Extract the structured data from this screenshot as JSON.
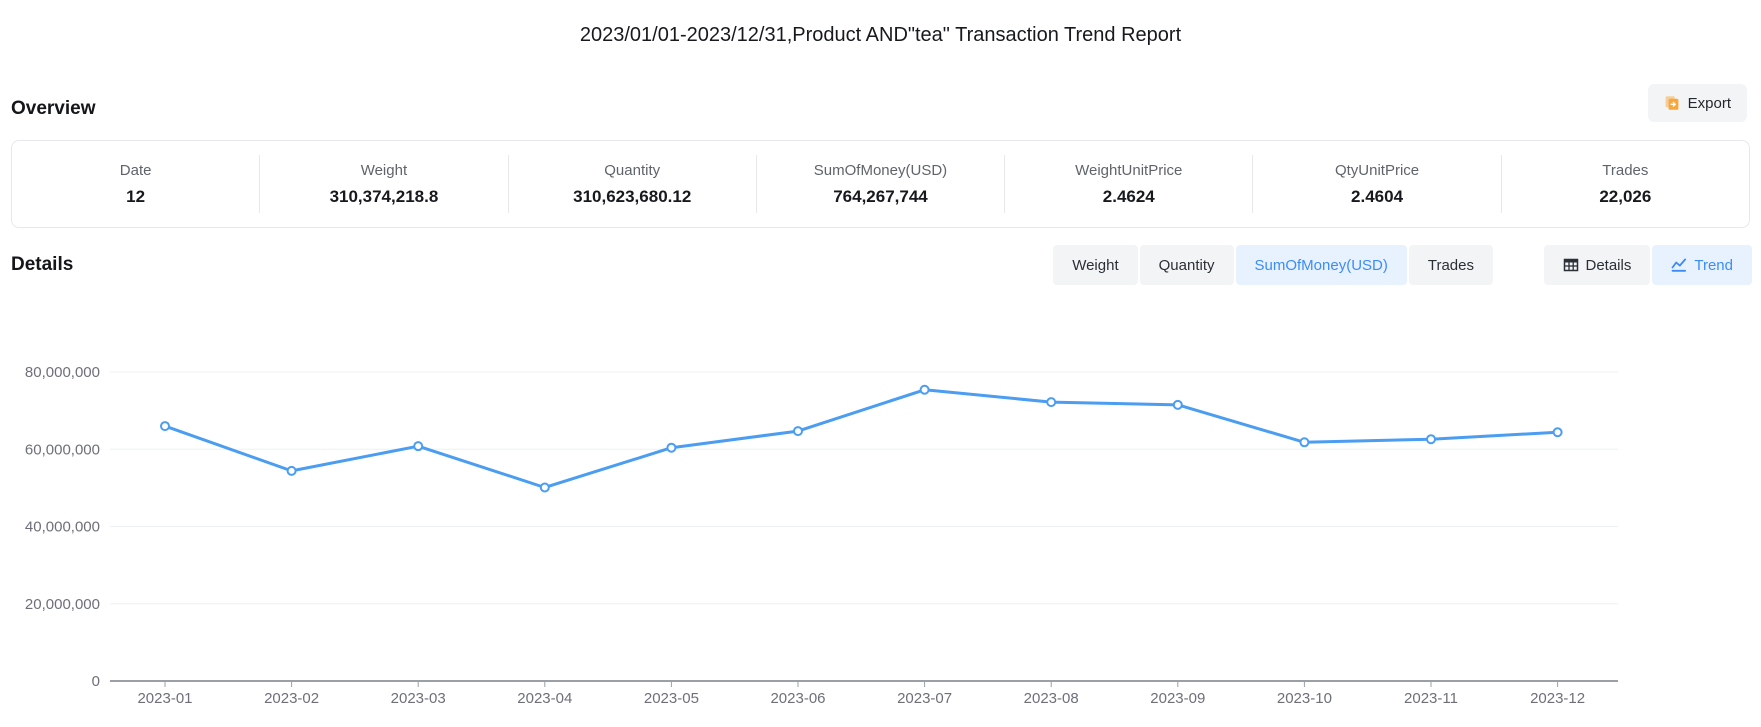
{
  "report": {
    "title": "2023/01/01-2023/12/31,Product AND\"tea\" Transaction Trend Report"
  },
  "overview": {
    "heading": "Overview",
    "export_label": "Export",
    "export_icon": "export-document-icon",
    "stats": [
      {
        "label": "Date",
        "value": "12"
      },
      {
        "label": "Weight",
        "value": "310,374,218.8"
      },
      {
        "label": "Quantity",
        "value": "310,623,680.12"
      },
      {
        "label": "SumOfMoney(USD)",
        "value": "764,267,744"
      },
      {
        "label": "WeightUnitPrice",
        "value": "2.4624"
      },
      {
        "label": "QtyUnitPrice",
        "value": "2.4604"
      },
      {
        "label": "Trades",
        "value": "22,026"
      }
    ]
  },
  "details": {
    "heading": "Details",
    "metric_tabs": [
      {
        "label": "Weight",
        "active": false
      },
      {
        "label": "Quantity",
        "active": false
      },
      {
        "label": "SumOfMoney(USD)",
        "active": true
      },
      {
        "label": "Trades",
        "active": false
      }
    ],
    "view_tabs": [
      {
        "label": "Details",
        "icon": "table-icon",
        "active": false
      },
      {
        "label": "Trend",
        "icon": "line-chart-icon",
        "active": true
      }
    ]
  },
  "chart_data": {
    "type": "line",
    "title": "",
    "xlabel": "",
    "ylabel": "",
    "x": [
      "2023-01",
      "2023-02",
      "2023-03",
      "2023-04",
      "2023-05",
      "2023-06",
      "2023-07",
      "2023-08",
      "2023-09",
      "2023-10",
      "2023-11",
      "2023-12"
    ],
    "series": [
      {
        "name": "SumOfMoney(USD)",
        "values": [
          66000000,
          54400000,
          60800000,
          50100000,
          60400000,
          64700000,
          75400000,
          72200000,
          71500000,
          61800000,
          62600000,
          64400000
        ]
      }
    ],
    "ylim": [
      0,
      80000000
    ],
    "ytick_interval": 20000000,
    "ytick_labels": [
      "0",
      "20,000,000",
      "40,000,000",
      "60,000,000",
      "80,000,000"
    ],
    "grid": true,
    "legend": false,
    "marker": "hollow-circle",
    "line_color": "#4b9df1"
  },
  "colors": {
    "accent": "#3b8cf8",
    "accent-bg": "#e8f2fe",
    "line": "#4b9df1",
    "export-icon": "#f7a73c",
    "text-dark": "#17191d",
    "text-gray": "#5f646b",
    "axis-label": "#6e7079",
    "border": "#e6e8eb",
    "btn-bg": "#f3f4f6",
    "grid": "#eef1f6",
    "axis": "#9aa0a6"
  }
}
